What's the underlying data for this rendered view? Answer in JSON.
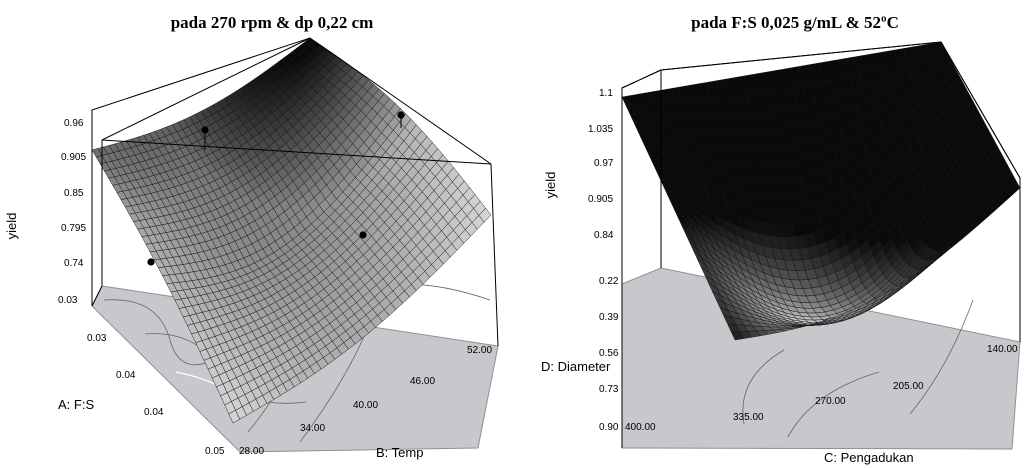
{
  "chart_data": [
    {
      "type": "surface",
      "title": "pada 270 rpm & dp 0,22 cm",
      "zlabel": "yield",
      "xlabel": "A: F:S",
      "ylabel": "B: Temp",
      "x_ticks": [
        "0.03",
        "0.03",
        "0.04",
        "0.04",
        "0.05"
      ],
      "y_ticks": [
        "28.00",
        "34.00",
        "40.00",
        "46.00",
        "52.00"
      ],
      "z_ticks": [
        "0.96",
        "0.905",
        "0.85",
        "0.795",
        "0.74"
      ],
      "x_range": [
        0.025,
        0.05
      ],
      "y_range": [
        28,
        52
      ],
      "z_range": [
        0.74,
        0.96
      ],
      "design_points_count": 4,
      "colors": {
        "surface_low": "#f4f4f4",
        "surface_high": "#050505",
        "floor": "#c7c7cc"
      }
    },
    {
      "type": "surface",
      "title": "pada F:S 0,025 g/mL & 52ºC",
      "zlabel": "yield",
      "xlabel": "D: Diameter",
      "ylabel": "C: Pengadukan",
      "x_ticks": [
        "0.22",
        "0.39",
        "0.56",
        "0.73",
        "0.90"
      ],
      "y_ticks": [
        "400.00",
        "335.00",
        "270.00",
        "205.00",
        "140.00"
      ],
      "z_ticks": [
        "1.1",
        "1.035",
        "0.97",
        "0.905",
        "0.84"
      ],
      "x_range": [
        0.22,
        0.9
      ],
      "y_range": [
        140,
        400
      ],
      "z_range": [
        0.84,
        1.1
      ],
      "colors": {
        "surface_low": "#f0f0f0",
        "surface_high": "#000000",
        "floor": "#c7c7cc"
      }
    }
  ]
}
